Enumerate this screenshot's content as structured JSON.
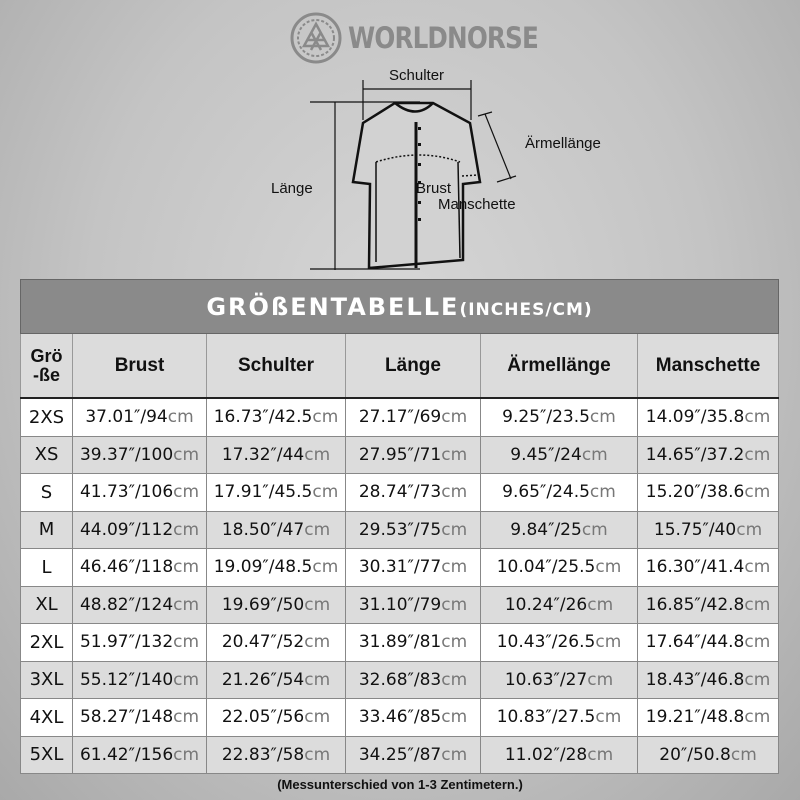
{
  "brand": {
    "name": "WORLDNORSE",
    "logo_icon": "valknut-knot-icon",
    "color": "#8a8a8a"
  },
  "diagram": {
    "labels": {
      "shoulder": "Schulter",
      "sleeve": "Ärmellänge",
      "length": "Länge",
      "chest": "Brust",
      "cuff": "Manschette"
    }
  },
  "table": {
    "title": "GRÖßENTABELLE",
    "title_unit": "(INCHES/CM)",
    "headers": {
      "size_line1": "Grö",
      "size_line2": "-ße",
      "chest": "Brust",
      "shoulder": "Schulter",
      "length": "Länge",
      "sleeve": "Ärmellänge",
      "cuff": "Manschette"
    },
    "unit_suffix": "cm",
    "rows": [
      {
        "size": "2XS",
        "cells": [
          [
            "37.01″/94"
          ],
          [
            "16.73″/42.5"
          ],
          [
            "27.17″/69"
          ],
          [
            "9.25″/23.5"
          ],
          [
            "14.09″/35.8"
          ]
        ]
      },
      {
        "size": "XS",
        "cells": [
          [
            "39.37″/100"
          ],
          [
            "17.32″/44"
          ],
          [
            "27.95″/71"
          ],
          [
            "9.45″/24"
          ],
          [
            "14.65″/37.2"
          ]
        ]
      },
      {
        "size": "S",
        "cells": [
          [
            "41.73″/106"
          ],
          [
            "17.91″/45.5"
          ],
          [
            "28.74″/73"
          ],
          [
            "9.65″/24.5"
          ],
          [
            "15.20″/38.6"
          ]
        ]
      },
      {
        "size": "M",
        "cells": [
          [
            "44.09″/112"
          ],
          [
            "18.50″/47"
          ],
          [
            "29.53″/75"
          ],
          [
            "9.84″/25"
          ],
          [
            "15.75″/40"
          ]
        ]
      },
      {
        "size": "L",
        "cells": [
          [
            "46.46″/118"
          ],
          [
            "19.09″/48.5"
          ],
          [
            "30.31″/77"
          ],
          [
            "10.04″/25.5"
          ],
          [
            "16.30″/41.4"
          ]
        ]
      },
      {
        "size": "XL",
        "cells": [
          [
            "48.82″/124"
          ],
          [
            "19.69″/50"
          ],
          [
            "31.10″/79"
          ],
          [
            "10.24″/26"
          ],
          [
            "16.85″/42.8"
          ]
        ]
      },
      {
        "size": "2XL",
        "cells": [
          [
            "51.97″/132"
          ],
          [
            "20.47″/52"
          ],
          [
            "31.89″/81"
          ],
          [
            "10.43″/26.5"
          ],
          [
            "17.64″/44.8"
          ]
        ]
      },
      {
        "size": "3XL",
        "cells": [
          [
            "55.12″/140"
          ],
          [
            "21.26″/54"
          ],
          [
            "32.68″/83"
          ],
          [
            "10.63″/27"
          ],
          [
            "18.43″/46.8"
          ]
        ]
      },
      {
        "size": "4XL",
        "cells": [
          [
            "58.27″/148"
          ],
          [
            "22.05″/56"
          ],
          [
            "33.46″/85"
          ],
          [
            "10.83″/27.5"
          ],
          [
            "19.21″/48.8"
          ]
        ]
      },
      {
        "size": "5XL",
        "cells": [
          [
            "61.42″/156"
          ],
          [
            "22.83″/58"
          ],
          [
            "34.25″/87"
          ],
          [
            "11.02″/28"
          ],
          [
            "20″/50.8"
          ]
        ]
      }
    ]
  },
  "footnote": "(Messunterschied von 1-3 Zentimetern.)"
}
